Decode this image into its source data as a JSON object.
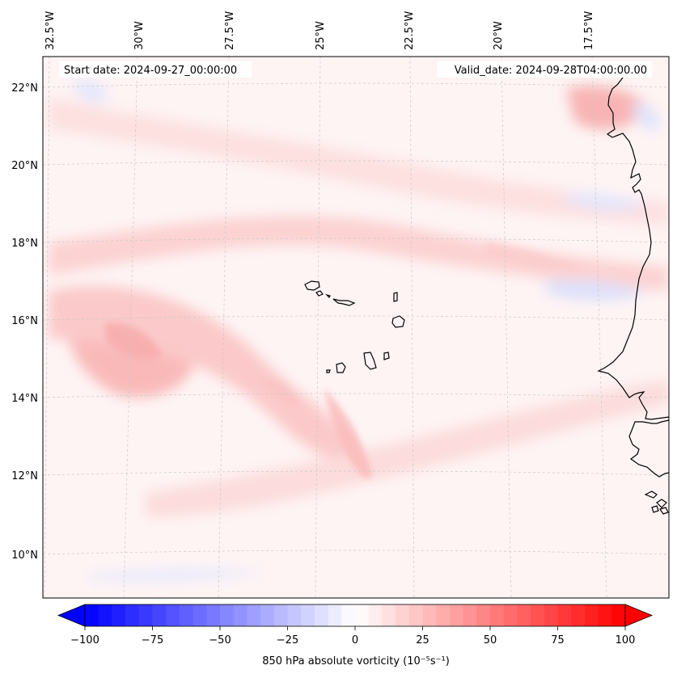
{
  "chart_data": {
    "type": "heatmap",
    "title": "",
    "annotations": {
      "start_date": "Start date: 2024-09-27_00:00:00",
      "valid_date": "Valid_date: 2024-09-28T04:00:00.00"
    },
    "longitude_labels": [
      "32.5°W",
      "30°W",
      "27.5°W",
      "25°W",
      "22.5°W",
      "20°W",
      "17.5°W"
    ],
    "longitude_values": [
      -32.5,
      -30,
      -27.5,
      -25,
      -22.5,
      -20,
      -17.5
    ],
    "latitude_labels": [
      "22°N",
      "20°N",
      "18°N",
      "16°N",
      "14°N",
      "12°N",
      "10°N"
    ],
    "latitude_values": [
      22,
      20,
      18,
      16,
      14,
      12,
      10
    ],
    "lon_range": [
      -33.5,
      -14.5
    ],
    "lat_range": [
      8.8,
      22.8
    ],
    "gridlines": true,
    "colorbar": {
      "label": "850 hPa absolute vorticity (10⁻⁵s⁻¹)",
      "ticks": [
        -100,
        -75,
        -50,
        -25,
        0,
        25,
        50,
        75,
        100
      ],
      "tick_labels": [
        "−100",
        "−75",
        "−50",
        "−25",
        "0",
        "25",
        "50",
        "75",
        "100"
      ],
      "vmin": -100,
      "vmax": 100,
      "levels": 40,
      "extend": "both",
      "neg_color": "#0000ff",
      "zero_color": "#ffffff",
      "pos_color": "#ff0000"
    },
    "features": [
      {
        "name": "positive-vorticity-band-north",
        "value": 12
      },
      {
        "name": "positive-vorticity-band-central",
        "value": 15
      },
      {
        "name": "positive-vorticity-max-west",
        "value": 22
      },
      {
        "name": "positive-vorticity-arc-southwest",
        "value": 14
      },
      {
        "name": "positive-vorticity-band-south",
        "value": 10
      },
      {
        "name": "positive-vorticity-coastal-north",
        "value": 18
      },
      {
        "name": "negative-vorticity-coastal",
        "value": -12
      },
      {
        "name": "negative-vorticity-northwest",
        "value": -8
      },
      {
        "name": "negative-vorticity-south",
        "value": -6
      }
    ]
  }
}
